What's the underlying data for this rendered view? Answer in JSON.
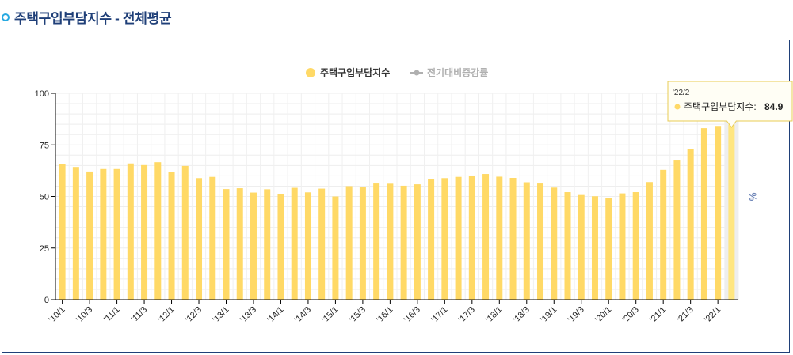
{
  "page": {
    "title": "주택구입부담지수 - 전체평균"
  },
  "chart_data": {
    "type": "bar",
    "title": "",
    "xlabel": "",
    "ylabel": "%",
    "ylim": [
      0,
      100
    ],
    "yticks": [
      0,
      25,
      50,
      75,
      100
    ],
    "grid": true,
    "legend_position": "top-center",
    "colors": {
      "bar": "#ffd966",
      "bar_highlight": "#ffe680",
      "axis_title": "#6f86b8",
      "inactive_legend": "#b0b0b0"
    },
    "legend": [
      {
        "label": "주택구입부담지수",
        "active": true
      },
      {
        "label": "전기대비증감률",
        "active": false
      }
    ],
    "categories": [
      "'10/1",
      "'10/2",
      "'10/3",
      "'10/4",
      "'11/1",
      "'11/2",
      "'11/3",
      "'11/4",
      "'12/1",
      "'12/2",
      "'12/3",
      "'12/4",
      "'13/1",
      "'13/2",
      "'13/3",
      "'13/4",
      "'14/1",
      "'14/2",
      "'14/3",
      "'14/4",
      "'15/1",
      "'15/2",
      "'15/3",
      "'15/4",
      "'16/1",
      "'16/2",
      "'16/3",
      "'16/4",
      "'17/1",
      "'17/2",
      "'17/3",
      "'17/4",
      "'18/1",
      "'18/2",
      "'18/3",
      "'18/4",
      "'19/1",
      "'19/2",
      "'19/3",
      "'19/4",
      "'20/1",
      "'20/2",
      "'20/3",
      "'20/4",
      "'21/1",
      "'21/2",
      "'21/3",
      "'21/4",
      "'22/1",
      "'22/2"
    ],
    "x_tick_labels": [
      "'10/1",
      "'10/3",
      "'11/1",
      "'11/3",
      "'12/1",
      "'12/3",
      "'13/1",
      "'13/3",
      "'14/1",
      "'14/3",
      "'15/1",
      "'15/3",
      "'16/1",
      "'16/3",
      "'17/1",
      "'17/3",
      "'18/1",
      "'18/3",
      "'19/1",
      "'19/3",
      "'20/1",
      "'20/3",
      "'21/1",
      "'21/3",
      "'22/1"
    ],
    "series": [
      {
        "name": "주택구입부담지수",
        "values": [
          65.6,
          64.3,
          62.1,
          63.3,
          63.3,
          66.0,
          65.2,
          66.6,
          61.9,
          64.8,
          58.9,
          59.5,
          53.6,
          54.0,
          51.9,
          53.5,
          51.2,
          54.2,
          52.0,
          53.8,
          50.0,
          55.0,
          54.4,
          56.3,
          56.2,
          55.2,
          55.9,
          58.6,
          58.9,
          59.5,
          59.8,
          60.9,
          59.6,
          59.0,
          56.9,
          56.3,
          54.3,
          52.1,
          50.7,
          50.1,
          49.3,
          51.5,
          52.1,
          57.0,
          62.9,
          67.8,
          72.9,
          83.1,
          84.2,
          84.9
        ]
      }
    ],
    "tooltip": {
      "category": "'22/2",
      "series_name": "주택구입부담지수",
      "value_text": "84.9"
    }
  }
}
